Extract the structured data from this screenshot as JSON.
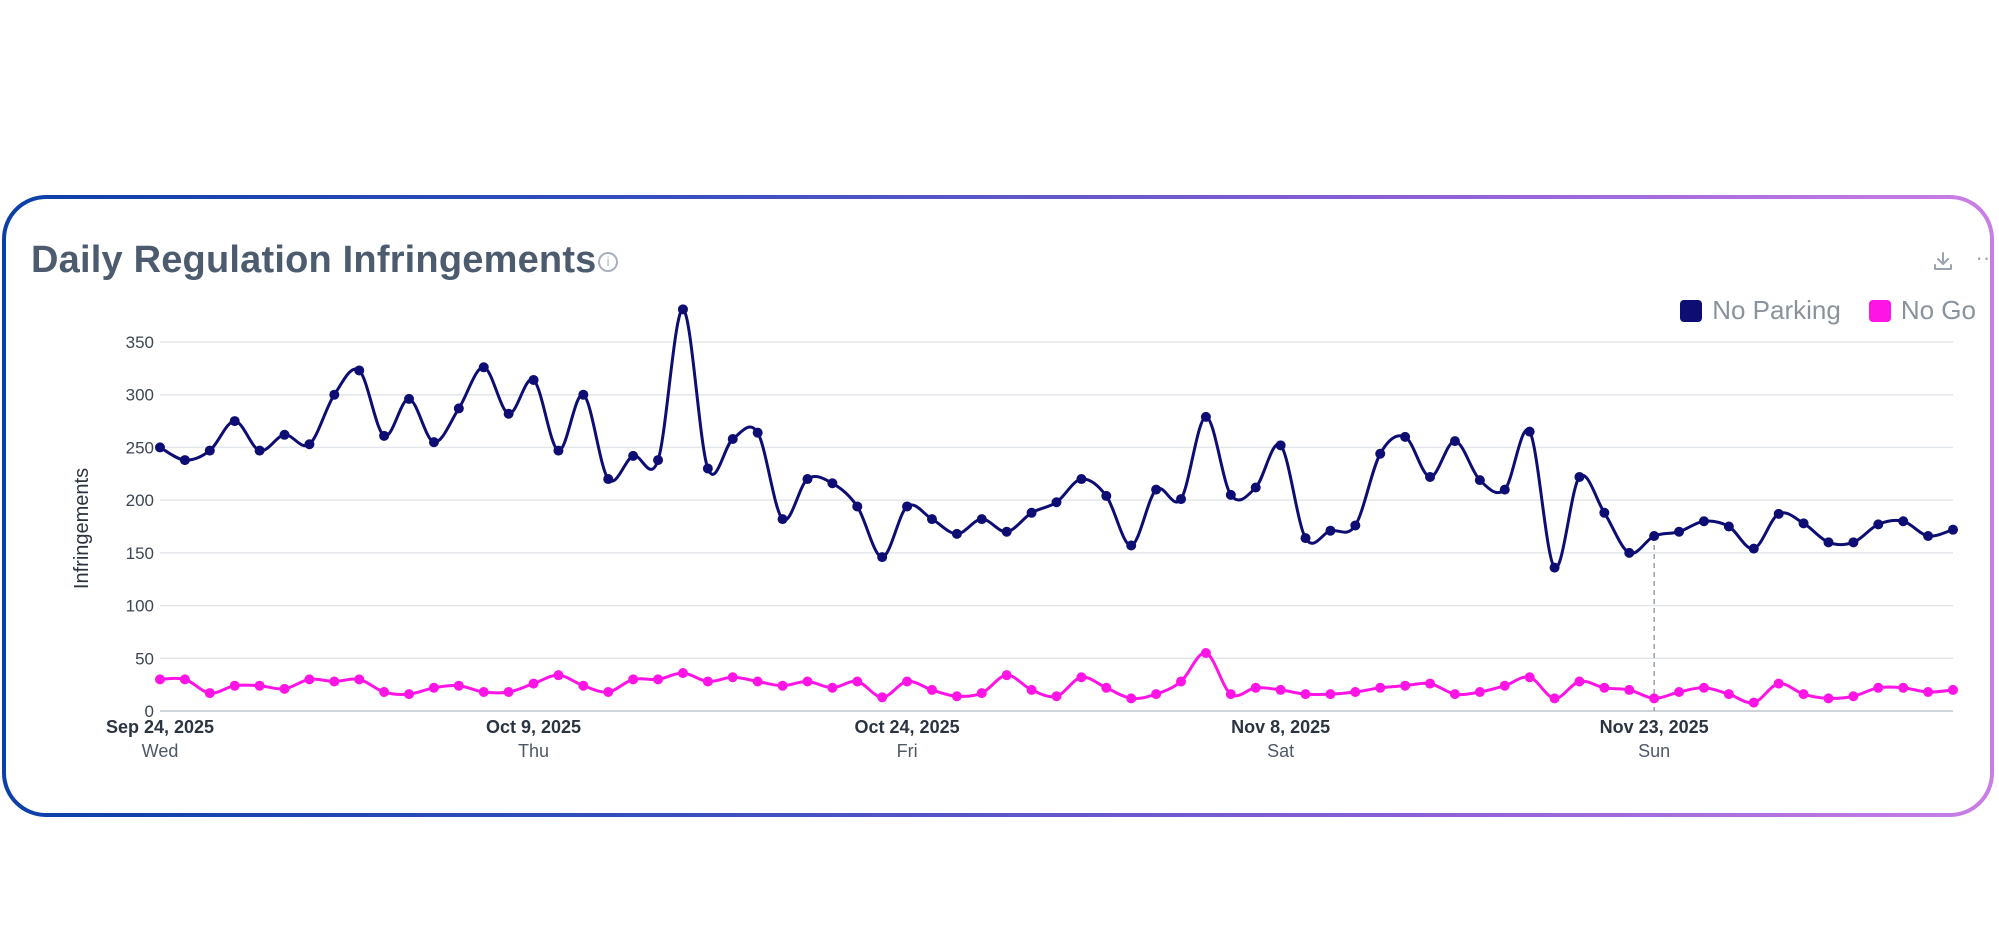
{
  "title": "Daily Regulation Infringements",
  "info_icon": "info-icon",
  "toolbar": {
    "download_icon": "download-icon",
    "more_icon": "more-icon",
    "more_glyph": "···"
  },
  "chart_data": {
    "type": "line",
    "title": "Daily Regulation Infringements",
    "xlabel": "",
    "ylabel": "Infringements",
    "ylim": [
      0,
      350
    ],
    "yticks": [
      0,
      50,
      100,
      150,
      200,
      250,
      300,
      350
    ],
    "grid": true,
    "legend_position": "top-right",
    "x_ticks": [
      {
        "index": 0,
        "date": "Sep 24, 2025",
        "day": "Wed"
      },
      {
        "index": 15,
        "date": "Oct 9, 2025",
        "day": "Thu"
      },
      {
        "index": 30,
        "date": "Oct 24, 2025",
        "day": "Fri"
      },
      {
        "index": 45,
        "date": "Nov 8, 2025",
        "day": "Sat"
      },
      {
        "index": 60,
        "date": "Nov 23, 2025",
        "day": "Sun"
      }
    ],
    "hover_index": 60,
    "start_date": "Sep 24, 2025",
    "series": [
      {
        "name": "No Parking",
        "color": "#0d0d73",
        "values": [
          250,
          238,
          247,
          275,
          247,
          262,
          253,
          300,
          323,
          261,
          296,
          255,
          287,
          326,
          282,
          314,
          247,
          300,
          220,
          242,
          238,
          381,
          230,
          258,
          264,
          182,
          220,
          216,
          194,
          146,
          194,
          182,
          168,
          182,
          170,
          188,
          198,
          220,
          204,
          157,
          210,
          201,
          279,
          205,
          212,
          252,
          164,
          171,
          176,
          244,
          260,
          222,
          256,
          219,
          210,
          265,
          136,
          222,
          188,
          150,
          166,
          170,
          180,
          175,
          154,
          187,
          178,
          160,
          160,
          177,
          180,
          166,
          172
        ]
      },
      {
        "name": "No Go",
        "color": "#ff14e6",
        "values": [
          30,
          30,
          17,
          24,
          24,
          21,
          30,
          28,
          30,
          18,
          16,
          22,
          24,
          18,
          18,
          26,
          34,
          24,
          18,
          30,
          30,
          36,
          28,
          32,
          28,
          24,
          28,
          22,
          28,
          13,
          28,
          20,
          14,
          17,
          34,
          20,
          14,
          32,
          22,
          12,
          16,
          28,
          55,
          16,
          22,
          20,
          16,
          16,
          18,
          22,
          24,
          26,
          16,
          18,
          24,
          32,
          12,
          28,
          22,
          20,
          12,
          18,
          22,
          16,
          8,
          26,
          16,
          12,
          14,
          22,
          22,
          18,
          20
        ]
      }
    ]
  }
}
